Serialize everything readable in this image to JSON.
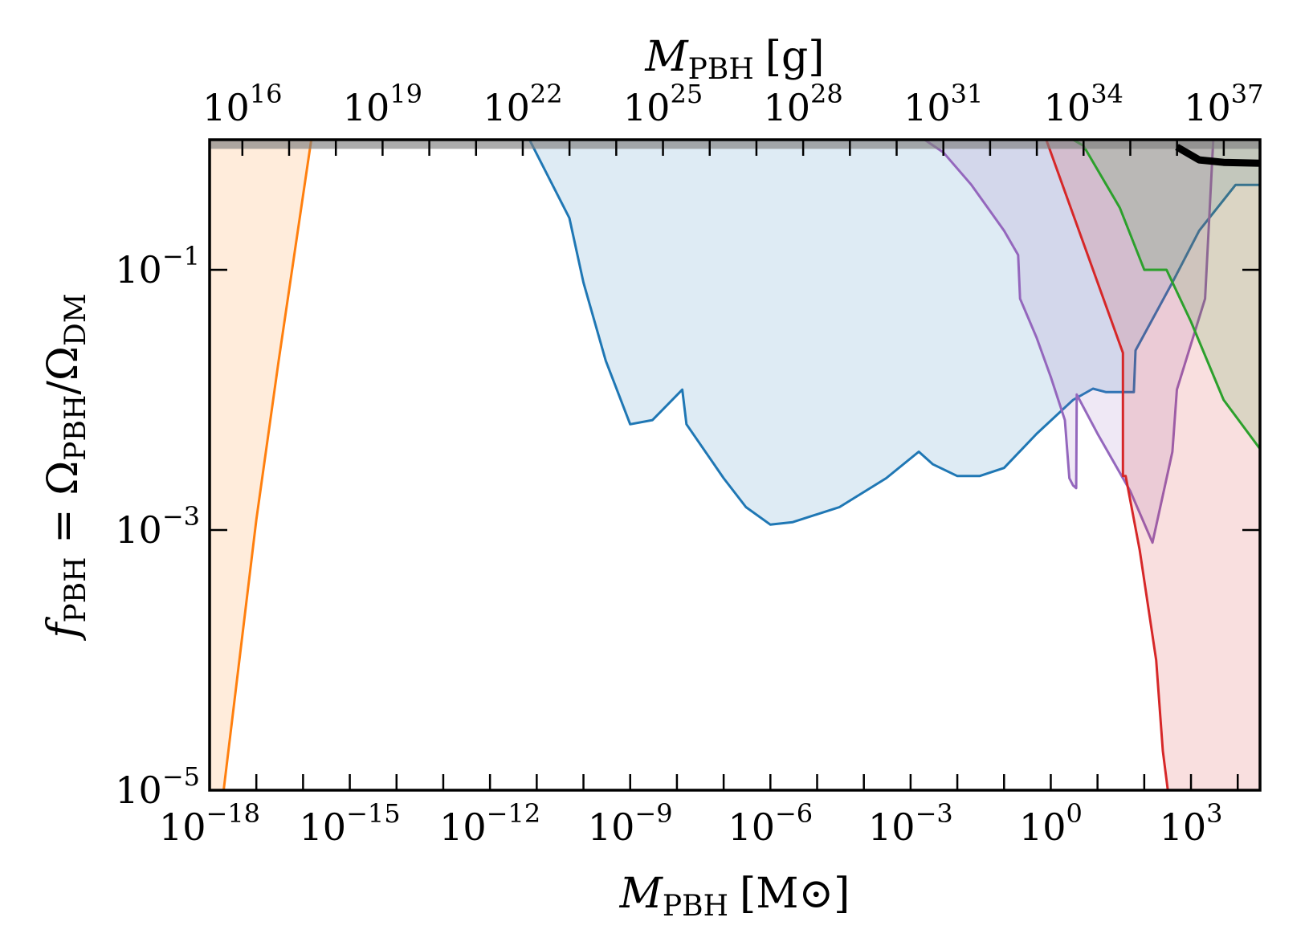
{
  "chart_data": {
    "type": "area",
    "x_scale": "log",
    "y_scale": "log",
    "xlim": [
      1e-18,
      30000
    ],
    "ylim": [
      1e-05,
      1
    ],
    "grid": false,
    "xlabel": {
      "base": "M",
      "sub": "PBH",
      "unit": "[M⊙]"
    },
    "ylabel": {
      "base": "f",
      "sub": "PBH",
      "eq": " = Ω",
      "sub2": "PBH",
      "slash": "/Ω",
      "sub3": "DM"
    },
    "x2label": {
      "base": "M",
      "sub": "PBH",
      "unit": "[g]"
    },
    "x_ticks": [
      {
        "value": 1e-18,
        "base": "10",
        "exp": "−18"
      },
      {
        "value": 1e-15,
        "base": "10",
        "exp": "−15"
      },
      {
        "value": 1e-12,
        "base": "10",
        "exp": "−12"
      },
      {
        "value": 1e-09,
        "base": "10",
        "exp": "−9"
      },
      {
        "value": 1e-06,
        "base": "10",
        "exp": "−6"
      },
      {
        "value": 0.001,
        "base": "10",
        "exp": "−3"
      },
      {
        "value": 1,
        "base": "10",
        "exp": "0"
      },
      {
        "value": 1000,
        "base": "10",
        "exp": "3"
      }
    ],
    "y_ticks": [
      {
        "value": 1e-05,
        "base": "10",
        "exp": "−5"
      },
      {
        "value": 0.001,
        "base": "10",
        "exp": "−3"
      },
      {
        "value": 0.1,
        "base": "10",
        "exp": "−1"
      }
    ],
    "x2_ticks": [
      {
        "value": 1e+16,
        "base": "10",
        "exp": "16"
      },
      {
        "value": 1e+19,
        "base": "10",
        "exp": "19"
      },
      {
        "value": 1e+22,
        "base": "10",
        "exp": "22"
      },
      {
        "value": 1e+25,
        "base": "10",
        "exp": "25"
      },
      {
        "value": 1e+28,
        "base": "10",
        "exp": "28"
      },
      {
        "value": 1e+31,
        "base": "10",
        "exp": "31"
      },
      {
        "value": 1e+34,
        "base": "10",
        "exp": "34"
      },
      {
        "value": 1e+37,
        "base": "10",
        "exp": "37"
      }
    ],
    "grams_per_msun": 1.989e+33,
    "colors": {
      "orange": "#ff7f0e",
      "blue": "#1f77b4",
      "purple": "#9467bd",
      "red": "#d62728",
      "green": "#2ca02c",
      "gray": "#7f7f7f",
      "black": "#000000"
    },
    "series": [
      {
        "color": "orange",
        "fill_opacity": 0.15,
        "fill_to": "left",
        "points": [
          [
            2e-18,
            1e-05
          ],
          [
            1e-17,
            0.0012
          ],
          [
            3e-17,
            0.02
          ],
          [
            1.5e-16,
            1
          ]
        ]
      },
      {
        "color": "blue",
        "fill_opacity": 0.15,
        "fill_to": "top",
        "points": [
          [
            7e-12,
            1
          ],
          [
            5e-11,
            0.25
          ],
          [
            1e-10,
            0.08
          ],
          [
            3e-10,
            0.02
          ],
          [
            1e-09,
            0.0065
          ],
          [
            3e-09,
            0.007
          ],
          [
            1.3e-08,
            0.012
          ],
          [
            1.6e-08,
            0.0065
          ],
          [
            1e-07,
            0.0025
          ],
          [
            3e-07,
            0.0015
          ],
          [
            1e-06,
            0.0011
          ],
          [
            3e-06,
            0.00115
          ],
          [
            3e-05,
            0.0015
          ],
          [
            0.0003,
            0.0025
          ],
          [
            0.0015,
            0.004
          ],
          [
            0.003,
            0.0032
          ],
          [
            0.01,
            0.0026
          ],
          [
            0.03,
            0.0026
          ],
          [
            0.1,
            0.003
          ],
          [
            0.5,
            0.0055
          ],
          [
            3,
            0.01
          ],
          [
            8,
            0.0122
          ],
          [
            15,
            0.0115
          ],
          [
            60,
            0.0115
          ],
          [
            65,
            0.024
          ],
          [
            400,
            0.08
          ],
          [
            1500,
            0.2
          ],
          [
            9000,
            0.45
          ],
          [
            30000,
            0.45
          ]
        ]
      },
      {
        "color": "purple",
        "fill_opacity": 0.15,
        "fill_to": "top",
        "points": [
          [
            0.002,
            1
          ],
          [
            0.005,
            0.8
          ],
          [
            0.02,
            0.45
          ],
          [
            0.1,
            0.2
          ],
          [
            0.2,
            0.13
          ],
          [
            0.22,
            0.06
          ],
          [
            0.5,
            0.03
          ],
          [
            1,
            0.015
          ],
          [
            2,
            0.007
          ],
          [
            2.5,
            0.0025
          ],
          [
            3,
            0.0022
          ],
          [
            3.5,
            0.0021
          ],
          [
            3.6,
            0.011
          ],
          [
            10,
            0.0055
          ],
          [
            50,
            0.002
          ],
          [
            150,
            0.0008
          ],
          [
            400,
            0.004
          ],
          [
            500,
            0.012
          ],
          [
            2000,
            0.06
          ],
          [
            3000,
            1
          ]
        ]
      },
      {
        "color": "red",
        "fill_opacity": 0.15,
        "fill_to": "right",
        "points": [
          [
            0.8,
            1
          ],
          [
            35,
            0.023
          ],
          [
            35,
            0.0026
          ],
          [
            40,
            0.0026
          ],
          [
            80,
            0.0007
          ],
          [
            180,
            0.0001
          ],
          [
            250,
            2e-05
          ],
          [
            320,
            1e-05
          ]
        ]
      },
      {
        "color": "green",
        "fill_opacity": 0.15,
        "fill_to": "top_right",
        "points": [
          [
            3,
            1
          ],
          [
            5,
            0.9
          ],
          [
            30,
            0.3
          ],
          [
            100,
            0.1
          ],
          [
            300,
            0.1
          ],
          [
            1000,
            0.04
          ],
          [
            5000,
            0.01
          ],
          [
            30000,
            0.0042
          ]
        ]
      },
      {
        "color": "gray",
        "fill_opacity": 0.65,
        "fill_to": "top",
        "no_stroke": true,
        "points": [
          [
            1e-18,
            0.85
          ],
          [
            30000,
            0.85
          ]
        ]
      },
      {
        "color": "black",
        "fill_opacity": 0,
        "fill_to": "none",
        "stroke_width": 9,
        "points": [
          [
            500,
            0.88
          ],
          [
            1500,
            0.7
          ],
          [
            5000,
            0.67
          ],
          [
            30000,
            0.66
          ]
        ]
      }
    ]
  }
}
